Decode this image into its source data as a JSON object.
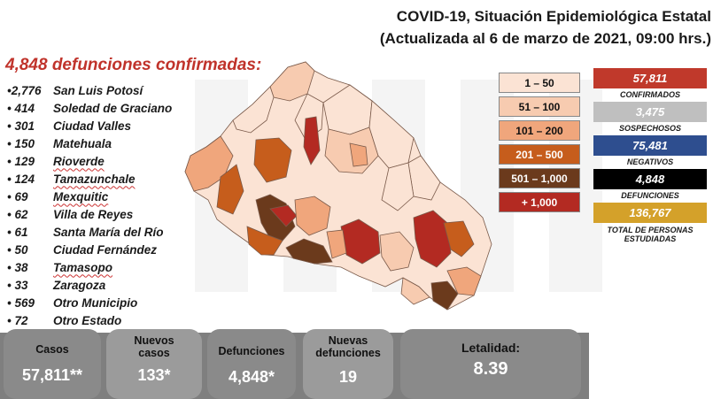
{
  "header": {
    "title": "COVID-19, Situación Epidemiológica Estatal",
    "subtitle": "(Actualizada al 6 de marzo de 2021, 09:00 hrs.)"
  },
  "deaths_title": "4,848 defunciones confirmadas:",
  "municipalities": [
    {
      "count": "•2,776",
      "name": "San Luis Potosí"
    },
    {
      "count": "• 414",
      "name": "Soledad de Graciano"
    },
    {
      "count": "• 301",
      "name": "Ciudad Valles"
    },
    {
      "count": "• 150",
      "name": "Matehuala"
    },
    {
      "count": "• 129",
      "name": "Rioverde"
    },
    {
      "count": "• 124",
      "name": "Tamazunchale"
    },
    {
      "count": "• 69",
      "name": "Mexquitic"
    },
    {
      "count": "• 62",
      "name": "Villa de Reyes"
    },
    {
      "count": "• 61",
      "name": "Santa María del Río"
    },
    {
      "count": "• 50",
      "name": "Ciudad Fernández"
    },
    {
      "count": "• 38",
      "name": "Tamasopo"
    },
    {
      "count": "• 33",
      "name": "Zaragoza"
    },
    {
      "count": "• 569",
      "name": "Otro Municipio"
    },
    {
      "count": "• 72",
      "name": "Otro Estado"
    }
  ],
  "legend": [
    {
      "label": "1 – 50",
      "color": "#fbe3d4",
      "text_color": "#111111"
    },
    {
      "label": "51 – 100",
      "color": "#f7cbb0",
      "text_color": "#111111"
    },
    {
      "label": "101 – 200",
      "color": "#f0a67c",
      "text_color": "#111111"
    },
    {
      "label": "201 – 500",
      "color": "#c65d1c",
      "text_color": "#ffffff"
    },
    {
      "label": "501 – 1,000",
      "color": "#6b3a1c",
      "text_color": "#ffffff"
    },
    {
      "label": "+ 1,000",
      "color": "#b32a22",
      "text_color": "#ffffff"
    }
  ],
  "stats": [
    {
      "value": "57,811",
      "label": "CONFIRMADOS",
      "color": "#c0392b"
    },
    {
      "value": "3,475",
      "label": "SOSPECHOSOS",
      "color": "#bfbfbf"
    },
    {
      "value": "75,481",
      "label": "NEGATIVOS",
      "color": "#2e4e8f"
    },
    {
      "value": "4,848",
      "label": "DEFUNCIONES",
      "color": "#000000"
    },
    {
      "value": "136,767",
      "label": "TOTAL DE PERSONAS ESTUDIADAS",
      "color": "#d4a12a"
    }
  ],
  "summary": {
    "cases_label": "Casos",
    "cases_value": "57,811**",
    "new_cases_label": "Nuevos casos",
    "new_cases_value": "133*",
    "deaths_label": "Defunciones",
    "deaths_value": "4,848*",
    "new_deaths_label": "Nuevas defunciones",
    "new_deaths_value": "19",
    "lethality_label": "Letalidad:",
    "lethality_value": "8.39"
  }
}
